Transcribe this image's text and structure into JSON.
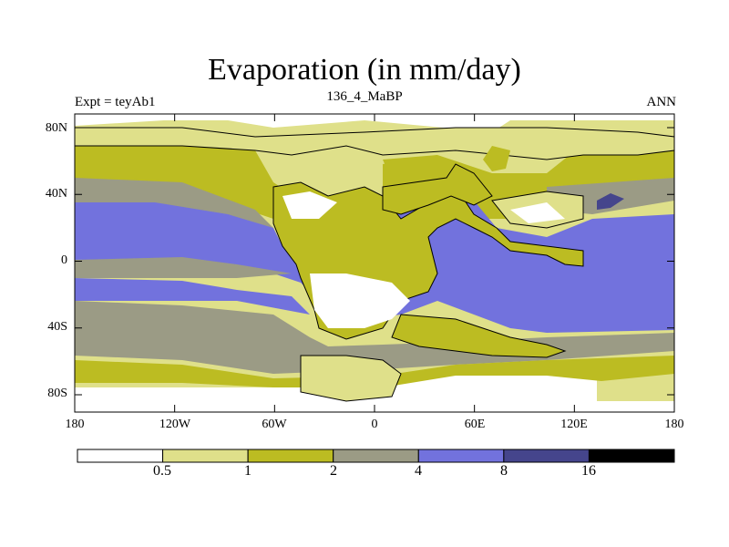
{
  "title": "Evaporation (in mm/day)",
  "subtitle_left": "Expt = teyAb1",
  "subtitle_center": "136_4_MaBP",
  "subtitle_right": "ANN",
  "axes": {
    "lat_ticks": [
      "80N",
      "40N",
      "0",
      "40S",
      "80S"
    ],
    "lon_ticks": [
      "180",
      "120W",
      "60W",
      "0",
      "60E",
      "120E",
      "180"
    ]
  },
  "colorbar": {
    "levels": [
      "0.5",
      "1",
      "2",
      "4",
      "8",
      "16"
    ],
    "colors": [
      "#ffffff",
      "#dfe08a",
      "#bcbc22",
      "#9b9b85",
      "#7272dd",
      "#45458c",
      "#000000"
    ]
  },
  "colors": {
    "land_outline": "#000000",
    "background": "#ffffff"
  }
}
